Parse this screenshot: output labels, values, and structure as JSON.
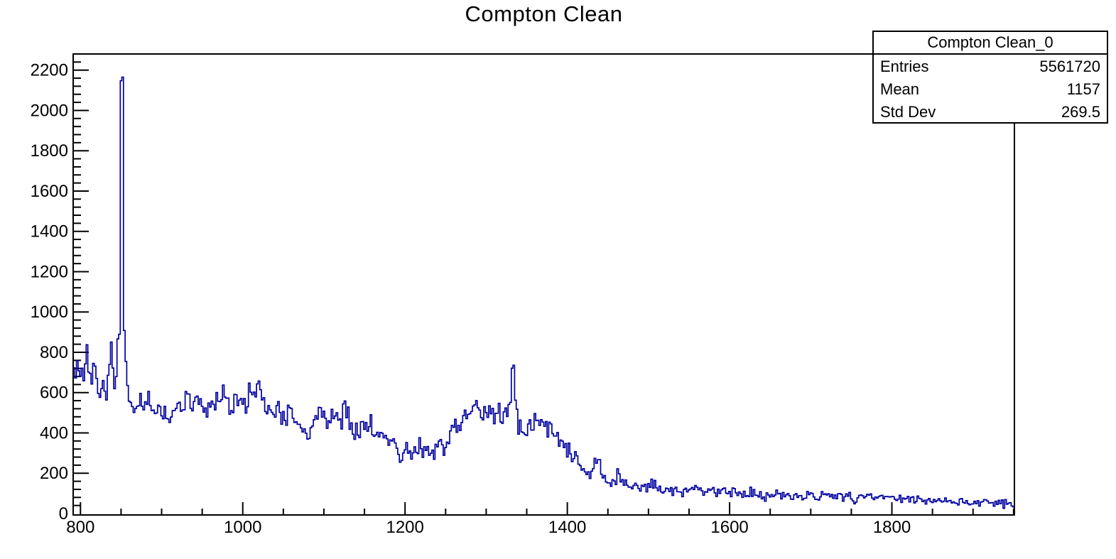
{
  "title": "Compton Clean",
  "stats_box": {
    "title": "Compton Clean_0",
    "rows": [
      {
        "label": "Entries",
        "value": "5561720"
      },
      {
        "label": "Mean",
        "value": "1157"
      },
      {
        "label": "Std Dev",
        "value": "269.5"
      }
    ]
  },
  "chart_data": {
    "type": "line",
    "subtype": "histogram-step",
    "title": "Compton Clean",
    "xlabel": "",
    "ylabel": "",
    "xlim": [
      791,
      1951
    ],
    "ylim": [
      0,
      2280
    ],
    "x_major_ticks": [
      800,
      1000,
      1200,
      1400,
      1600,
      1800
    ],
    "x_minor_step": 50,
    "y_major_ticks": [
      0,
      200,
      400,
      600,
      800,
      1000,
      1200,
      1400,
      1600,
      1800,
      2000,
      2200
    ],
    "y_minor_step": 40,
    "grid": false,
    "legend": false,
    "line_color": "#0000a0",
    "frame_color": "#000000",
    "bin_width": 2,
    "noise": {
      "seed": 20,
      "scale": 1.4
    },
    "series": [
      {
        "name": "Compton Clean_0",
        "entries": 5561720,
        "mean": 1157,
        "std_dev": 269.5,
        "anchors": [
          [
            791,
            700
          ],
          [
            795,
            722
          ],
          [
            800,
            715
          ],
          [
            805,
            732
          ],
          [
            810,
            745
          ],
          [
            814,
            725
          ],
          [
            818,
            680
          ],
          [
            822,
            640
          ],
          [
            826,
            610
          ],
          [
            830,
            595
          ],
          [
            833,
            615
          ],
          [
            836,
            690
          ],
          [
            838,
            810
          ],
          [
            840,
            700
          ],
          [
            842,
            655
          ],
          [
            844,
            690
          ],
          [
            846,
            820
          ],
          [
            848,
            900
          ],
          [
            849,
            1400
          ],
          [
            850,
            2160
          ],
          [
            852,
            2160
          ],
          [
            853,
            1300
          ],
          [
            854,
            900
          ],
          [
            856,
            750
          ],
          [
            858,
            620
          ],
          [
            861,
            565
          ],
          [
            865,
            545
          ],
          [
            870,
            548
          ],
          [
            875,
            565
          ],
          [
            878,
            570
          ],
          [
            882,
            555
          ],
          [
            886,
            545
          ],
          [
            890,
            525
          ],
          [
            894,
            515
          ],
          [
            898,
            495
          ],
          [
            902,
            470
          ],
          [
            906,
            462
          ],
          [
            910,
            468
          ],
          [
            914,
            478
          ],
          [
            918,
            495
          ],
          [
            922,
            510
          ],
          [
            926,
            522
          ],
          [
            930,
            540
          ],
          [
            934,
            552
          ],
          [
            938,
            558
          ],
          [
            942,
            565
          ],
          [
            946,
            560
          ],
          [
            950,
            545
          ],
          [
            954,
            525
          ],
          [
            958,
            512
          ],
          [
            962,
            518
          ],
          [
            966,
            535
          ],
          [
            970,
            568
          ],
          [
            973,
            600
          ],
          [
            976,
            612
          ],
          [
            979,
            590
          ],
          [
            983,
            565
          ],
          [
            987,
            552
          ],
          [
            991,
            545
          ],
          [
            995,
            540
          ],
          [
            1000,
            545
          ],
          [
            1005,
            556
          ],
          [
            1010,
            588
          ],
          [
            1014,
            622
          ],
          [
            1017,
            635
          ],
          [
            1020,
            622
          ],
          [
            1024,
            585
          ],
          [
            1028,
            540
          ],
          [
            1032,
            515
          ],
          [
            1036,
            502
          ],
          [
            1040,
            495
          ],
          [
            1044,
            558
          ],
          [
            1047,
            510
          ],
          [
            1051,
            478
          ],
          [
            1055,
            462
          ],
          [
            1058,
            515
          ],
          [
            1061,
            475
          ],
          [
            1065,
            452
          ],
          [
            1070,
            440
          ],
          [
            1075,
            432
          ],
          [
            1080,
            416
          ],
          [
            1085,
            420
          ],
          [
            1090,
            448
          ],
          [
            1095,
            478
          ],
          [
            1099,
            490
          ],
          [
            1104,
            462
          ],
          [
            1109,
            442
          ],
          [
            1114,
            468
          ],
          [
            1119,
            488
          ],
          [
            1124,
            494
          ],
          [
            1129,
            480
          ],
          [
            1134,
            452
          ],
          [
            1139,
            432
          ],
          [
            1144,
            426
          ],
          [
            1149,
            440
          ],
          [
            1154,
            446
          ],
          [
            1159,
            432
          ],
          [
            1164,
            412
          ],
          [
            1169,
            400
          ],
          [
            1174,
            392
          ],
          [
            1179,
            372
          ],
          [
            1184,
            348
          ],
          [
            1189,
            330
          ],
          [
            1194,
            316
          ],
          [
            1200,
            310
          ],
          [
            1206,
            314
          ],
          [
            1212,
            308
          ],
          [
            1218,
            306
          ],
          [
            1224,
            312
          ],
          [
            1230,
            308
          ],
          [
            1236,
            302
          ],
          [
            1240,
            330
          ],
          [
            1242,
            400
          ],
          [
            1244,
            330
          ],
          [
            1247,
            308
          ],
          [
            1251,
            338
          ],
          [
            1255,
            375
          ],
          [
            1259,
            415
          ],
          [
            1264,
            448
          ],
          [
            1269,
            468
          ],
          [
            1274,
            484
          ],
          [
            1279,
            494
          ],
          [
            1284,
            528
          ],
          [
            1287,
            560
          ],
          [
            1290,
            508
          ],
          [
            1294,
            500
          ],
          [
            1299,
            510
          ],
          [
            1304,
            514
          ],
          [
            1309,
            506
          ],
          [
            1314,
            500
          ],
          [
            1319,
            494
          ],
          [
            1324,
            480
          ],
          [
            1327,
            495
          ],
          [
            1330,
            560
          ],
          [
            1332,
            700
          ],
          [
            1334,
            778
          ],
          [
            1336,
            645
          ],
          [
            1338,
            520
          ],
          [
            1340,
            435
          ],
          [
            1344,
            400
          ],
          [
            1348,
            414
          ],
          [
            1352,
            438
          ],
          [
            1356,
            452
          ],
          [
            1360,
            464
          ],
          [
            1364,
            458
          ],
          [
            1368,
            448
          ],
          [
            1372,
            430
          ],
          [
            1376,
            414
          ],
          [
            1380,
            404
          ],
          [
            1385,
            394
          ],
          [
            1390,
            382
          ],
          [
            1395,
            362
          ],
          [
            1400,
            332
          ],
          [
            1405,
            304
          ],
          [
            1410,
            268
          ],
          [
            1415,
            232
          ],
          [
            1420,
            202
          ],
          [
            1424,
            190
          ],
          [
            1428,
            196
          ],
          [
            1432,
            222
          ],
          [
            1435,
            272
          ],
          [
            1437,
            302
          ],
          [
            1439,
            258
          ],
          [
            1442,
            202
          ],
          [
            1445,
            172
          ],
          [
            1449,
            160
          ],
          [
            1453,
            156
          ],
          [
            1457,
            168
          ],
          [
            1460,
            195
          ],
          [
            1462,
            216
          ],
          [
            1465,
            192
          ],
          [
            1468,
            166
          ],
          [
            1472,
            152
          ],
          [
            1477,
            146
          ],
          [
            1482,
            142
          ],
          [
            1490,
            140
          ],
          [
            1500,
            136
          ],
          [
            1510,
            131
          ],
          [
            1520,
            126
          ],
          [
            1530,
            121
          ],
          [
            1540,
            118
          ],
          [
            1550,
            115
          ],
          [
            1565,
            111
          ],
          [
            1580,
            108
          ],
          [
            1600,
            104
          ],
          [
            1620,
            100
          ],
          [
            1640,
            96
          ],
          [
            1660,
            92
          ],
          [
            1680,
            88
          ],
          [
            1700,
            85
          ],
          [
            1720,
            83
          ],
          [
            1740,
            82
          ],
          [
            1757,
            82
          ],
          [
            1766,
            88
          ],
          [
            1775,
            90
          ],
          [
            1785,
            85
          ],
          [
            1800,
            78
          ],
          [
            1820,
            72
          ],
          [
            1840,
            68
          ],
          [
            1860,
            64
          ],
          [
            1880,
            60
          ],
          [
            1900,
            57
          ],
          [
            1920,
            54
          ],
          [
            1940,
            52
          ],
          [
            1951,
            50
          ]
        ]
      }
    ]
  }
}
